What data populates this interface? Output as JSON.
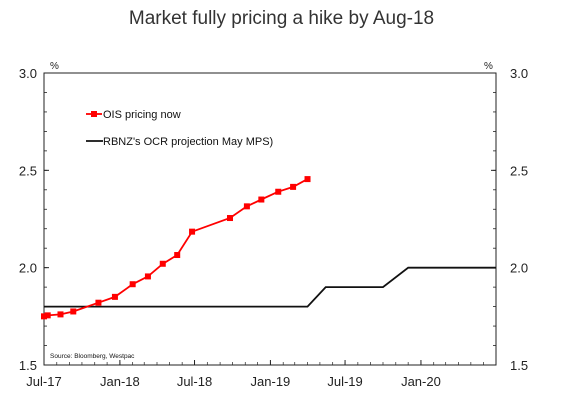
{
  "title": "Market fully pricing a hike by Aug-18",
  "chart_data": {
    "type": "line",
    "title": "Market fully pricing a hike by Aug-18",
    "y_unit_left": "%",
    "y_unit_right": "%",
    "ylim": [
      1.5,
      3.0
    ],
    "y_ticks": [
      "1.5",
      "2.0",
      "2.5",
      "3.0"
    ],
    "x_ticks": [
      "Jul-17",
      "Jan-18",
      "Jul-18",
      "Jan-19",
      "Jul-19",
      "Jan-20"
    ],
    "x_start": "2017-07-01",
    "x_end": "2020-07-01",
    "grid": false,
    "legend_position": "top-left",
    "source": "Source: Bloomberg, Westpac",
    "series": [
      {
        "name": "OIS pricing now",
        "color": "#ff0000",
        "marker": "square",
        "points": [
          {
            "x": "2017-07-01",
            "y": 1.75
          },
          {
            "x": "2017-07-10",
            "y": 1.755
          },
          {
            "x": "2017-08-10",
            "y": 1.76
          },
          {
            "x": "2017-09-10",
            "y": 1.775
          },
          {
            "x": "2017-11-10",
            "y": 1.82
          },
          {
            "x": "2017-12-20",
            "y": 1.85
          },
          {
            "x": "2018-02-01",
            "y": 1.915
          },
          {
            "x": "2018-03-10",
            "y": 1.955
          },
          {
            "x": "2018-04-15",
            "y": 2.02
          },
          {
            "x": "2018-05-20",
            "y": 2.065
          },
          {
            "x": "2018-06-25",
            "y": 2.185
          },
          {
            "x": "2018-09-25",
            "y": 2.255
          },
          {
            "x": "2018-11-05",
            "y": 2.315
          },
          {
            "x": "2018-12-10",
            "y": 2.35
          },
          {
            "x": "2019-01-20",
            "y": 2.39
          },
          {
            "x": "2019-02-25",
            "y": 2.415
          },
          {
            "x": "2019-04-01",
            "y": 2.455
          }
        ]
      },
      {
        "name": "RBNZ's OCR projection May MPS)",
        "color": "#111111",
        "marker": "none",
        "points": [
          {
            "x": "2017-07-01",
            "y": 1.8
          },
          {
            "x": "2019-04-01",
            "y": 1.8
          },
          {
            "x": "2019-05-15",
            "y": 1.9
          },
          {
            "x": "2019-10-01",
            "y": 1.9
          },
          {
            "x": "2019-12-01",
            "y": 2.0
          },
          {
            "x": "2020-07-01",
            "y": 2.0
          }
        ]
      }
    ]
  }
}
